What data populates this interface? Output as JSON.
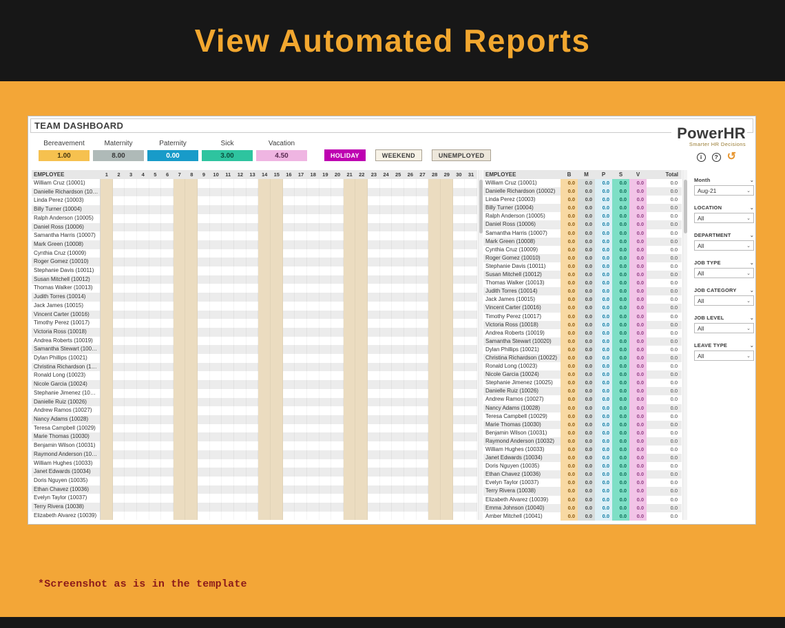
{
  "banner": {
    "title": "View Automated Reports"
  },
  "footer": {
    "note": "*Screenshot as is in the template"
  },
  "dashboard": {
    "title": "TEAM DASHBOARD",
    "logo": {
      "name": "PowerHR",
      "tagline": "Smarter HR Decisions"
    },
    "legend": [
      {
        "label": "Bereavement",
        "value": "1.00",
        "color": "#F6C14F",
        "text_color": "#4A3A10"
      },
      {
        "label": "Maternity",
        "value": "8.00",
        "color": "#AFBAB8",
        "text_color": "#3A3A3A"
      },
      {
        "label": "Paternity",
        "value": "0.00",
        "color": "#189BC9",
        "text_color": "#FFFFFF"
      },
      {
        "label": "Sick",
        "value": "3.00",
        "color": "#2EC49F",
        "text_color": "#0B4F3F"
      },
      {
        "label": "Vacation",
        "value": "4.50",
        "color": "#EFB5E2",
        "text_color": "#5A2B52"
      }
    ],
    "buttons": [
      {
        "label": "HOLIDAY",
        "bg": "#BE00B1",
        "fg": "#FFFFFF",
        "border": ""
      },
      {
        "label": "WEEKEND",
        "bg": "#F7F2E6",
        "fg": "#3D3D3D",
        "border": "#A9A192"
      },
      {
        "label": "UNEMPLOYED",
        "bg": "#EDE7DB",
        "fg": "#3D3D3D",
        "border": "#A9A192"
      }
    ],
    "icons": [
      {
        "name": "info-icon",
        "glyph": "i",
        "color": "#2F2F2F"
      },
      {
        "name": "help-icon",
        "glyph": "?",
        "color": "#2F2F2F"
      },
      {
        "name": "undo-icon",
        "glyph": "↺",
        "color": "#E7952F"
      }
    ],
    "employees": [
      "William Cruz (10001)",
      "Danielle Richardson (10002)",
      "Linda Perez (10003)",
      "Billy Turner (10004)",
      "Ralph Anderson (10005)",
      "Daniel Ross (10006)",
      "Samantha Harris (10007)",
      "Mark Green (10008)",
      "Cynthia Cruz (10009)",
      "Roger Gomez (10010)",
      "Stephanie Davis (10011)",
      "Susan Mitchell (10012)",
      "Thomas Walker (10013)",
      "Judith Torres (10014)",
      "Jack James (10015)",
      "Vincent Carter (10016)",
      "Timothy Perez (10017)",
      "Victoria Ross (10018)",
      "Andrea Roberts (10019)",
      "Samantha Stewart (10020)",
      "Dylan Phillips (10021)",
      "Christina Richardson (10022)",
      "Ronald Long (10023)",
      "Nicole Garcia (10024)",
      "Stephanie Jimenez (10025)",
      "Danielle Ruiz (10026)",
      "Andrew Ramos (10027)",
      "Nancy Adams (10028)",
      "Teresa Campbell (10029)",
      "Marie Thomas (10030)",
      "Benjamin Wilson (10031)",
      "Raymond Anderson (10032)",
      "William Hughes (10033)",
      "Janet Edwards (10034)",
      "Doris Nguyen (10035)",
      "Ethan Chavez (10036)",
      "Evelyn Taylor (10037)",
      "Terry Rivera (10038)",
      "Elizabeth Alvarez (10039)",
      "Emma Johnson (10040)",
      "Amber Mitchell (10041)"
    ],
    "gantt": {
      "employee_header": "EMPLOYEE",
      "days": [
        1,
        2,
        3,
        4,
        5,
        6,
        7,
        8,
        9,
        10,
        11,
        12,
        13,
        14,
        15,
        16,
        17,
        18,
        19,
        20,
        21,
        22,
        23,
        24,
        25,
        26,
        27,
        28,
        29,
        30,
        31
      ],
      "weekend_days": [
        1,
        7,
        8,
        14,
        15,
        21,
        22,
        28,
        29
      ],
      "visible_rows": 39
    },
    "summary": {
      "headers": [
        "EMPLOYEE",
        "B",
        "M",
        "P",
        "S",
        "V",
        "Total"
      ],
      "cell_value": "0.0",
      "columns": [
        {
          "key": "B",
          "bg": "#F8D9A3",
          "fg": "#8A5A10"
        },
        {
          "key": "M",
          "bg": "#D7DCDB",
          "fg": "#4A4A4A"
        },
        {
          "key": "P",
          "bg": "#DDF0F7",
          "fg": "#0D7BA3"
        },
        {
          "key": "S",
          "bg": "#7EDFC6",
          "fg": "#0C6B55"
        },
        {
          "key": "V",
          "bg": "#F2C3E7",
          "fg": "#8F3F84"
        },
        {
          "key": "Total",
          "bg": "",
          "fg": "#3A3A3A"
        }
      ]
    },
    "filters": [
      {
        "label": "Month",
        "value": "Aug-21"
      },
      {
        "label": "LOCATION",
        "value": "All"
      },
      {
        "label": "DEPARTMENT",
        "value": "All"
      },
      {
        "label": "JOB TYPE",
        "value": "All"
      },
      {
        "label": "JOB CATEGORY",
        "value": "All"
      },
      {
        "label": "JOB LEVEL",
        "value": "All"
      },
      {
        "label": "LEAVE TYPE",
        "value": "All"
      }
    ]
  }
}
